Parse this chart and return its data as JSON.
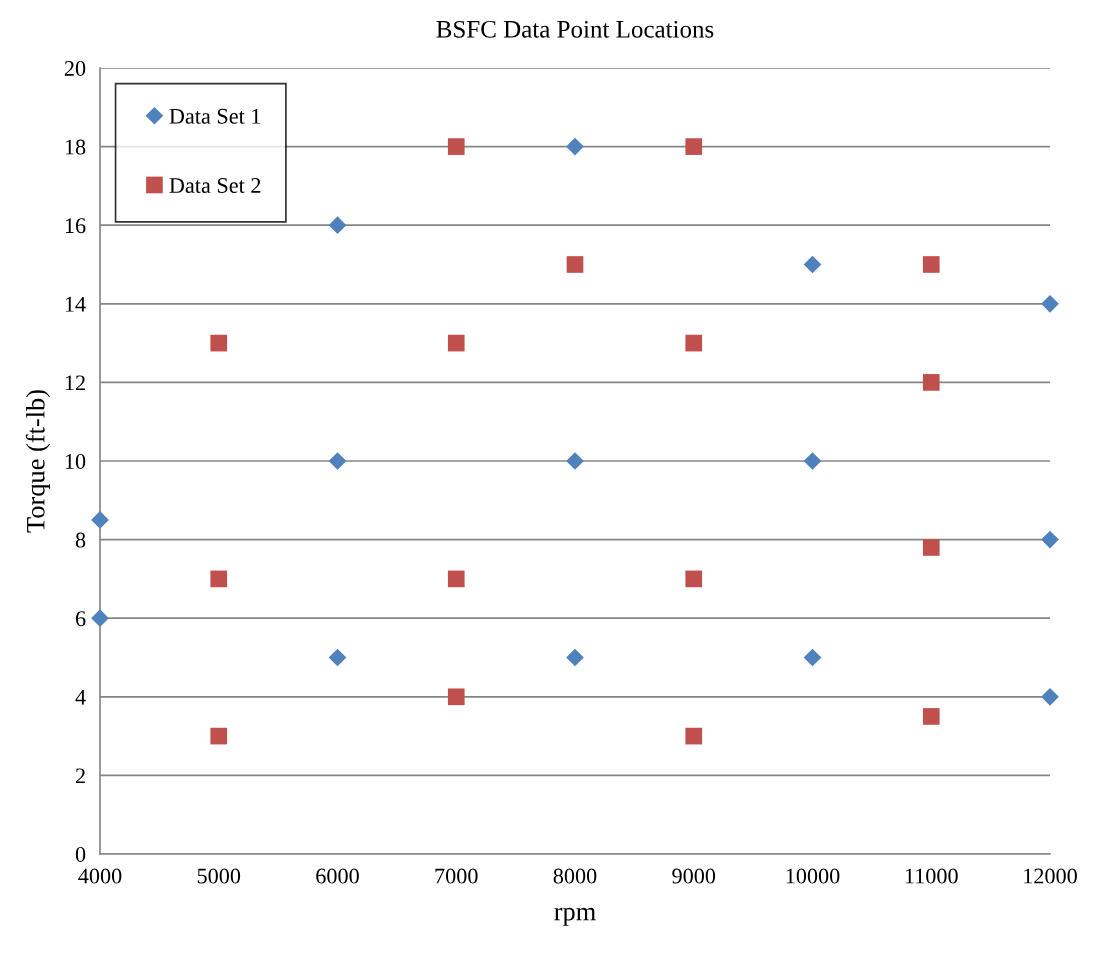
{
  "chart_data": {
    "type": "scatter",
    "title": "BSFC Data Point Locations",
    "xlabel": "rpm",
    "ylabel": "Torque (ft-lb)",
    "xlim": [
      4000,
      12000
    ],
    "xticks": [
      4000,
      5000,
      6000,
      7000,
      8000,
      9000,
      10000,
      11000,
      12000
    ],
    "ylim": [
      0,
      20
    ],
    "yticks": [
      0,
      2,
      4,
      6,
      8,
      10,
      12,
      14,
      16,
      18,
      20
    ],
    "grid": "y",
    "legend": "top left",
    "series": [
      {
        "name": "Data Set 1",
        "color": "#4f81bd",
        "marker": "diamond",
        "x": [
          4000,
          4000,
          6000,
          6000,
          6000,
          8000,
          8000,
          8000,
          10000,
          10000,
          10000,
          12000,
          12000,
          12000
        ],
        "values": [
          8.5,
          6,
          16,
          10,
          5,
          18,
          10,
          5,
          15,
          10,
          5,
          14,
          8,
          4
        ]
      },
      {
        "name": "Data Set 2",
        "color": "#c0504d",
        "marker": "square",
        "x": [
          5000,
          5000,
          5000,
          7000,
          7000,
          7000,
          7000,
          8000,
          9000,
          9000,
          9000,
          9000,
          11000,
          11000,
          11000,
          11000
        ],
        "values": [
          13,
          7,
          3,
          18,
          13,
          7,
          4,
          15,
          18,
          13,
          7,
          3,
          15,
          12,
          7.8,
          3.5
        ]
      }
    ]
  }
}
